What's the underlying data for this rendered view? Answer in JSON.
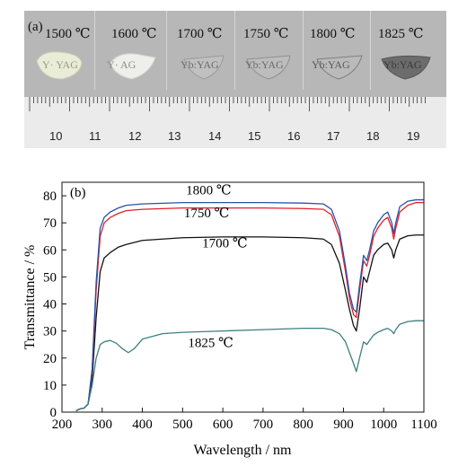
{
  "photo": {
    "label": "(a)",
    "temps": [
      "1500 ℃",
      "1600 ℃",
      "1700 ℃",
      "1750 ℃",
      "1800 ℃",
      "1825 ℃"
    ],
    "sample_text": [
      "Y· YAG",
      "Y· AG",
      "Yb:YAG",
      "Yb:YAG",
      "Yb:YAG",
      "Yb:YAG"
    ],
    "ruler_numbers": [
      "10",
      "11",
      "12",
      "13",
      "14",
      "15",
      "16",
      "17",
      "18",
      "19"
    ]
  },
  "chart_data": {
    "type": "line",
    "panel_label": "(b)",
    "xlabel": "Wavelength / nm",
    "ylabel": "Transmittance / %",
    "xlim": [
      200,
      1100
    ],
    "ylim": [
      0,
      85
    ],
    "xticks": [
      200,
      300,
      400,
      500,
      600,
      700,
      800,
      900,
      1000,
      1100
    ],
    "yticks": [
      0,
      10,
      20,
      30,
      40,
      50,
      60,
      70,
      80
    ],
    "series": [
      {
        "name": "1700 ℃",
        "color": "#111111",
        "x": [
          235,
          245,
          255,
          265,
          275,
          285,
          295,
          305,
          320,
          340,
          360,
          400,
          500,
          600,
          700,
          800,
          850,
          870,
          890,
          905,
          915,
          925,
          932,
          940,
          950,
          958,
          965,
          975,
          985,
          1000,
          1010,
          1020,
          1025,
          1030,
          1040,
          1060,
          1080,
          1100
        ],
        "y": [
          0.5,
          1.2,
          1.5,
          3,
          12,
          35,
          52,
          57,
          59,
          61,
          62,
          63.5,
          64.5,
          64.8,
          64.8,
          64.5,
          64,
          62,
          55,
          45,
          38,
          32,
          30,
          38,
          50,
          48,
          52,
          58,
          60,
          62,
          62.5,
          60,
          57,
          60,
          64,
          65.2,
          65.5,
          65.5
        ]
      },
      {
        "name": "1750 ℃",
        "color": "#e0202a",
        "x": [
          235,
          245,
          255,
          265,
          275,
          285,
          295,
          305,
          320,
          340,
          360,
          400,
          500,
          600,
          700,
          800,
          850,
          870,
          890,
          905,
          915,
          925,
          932,
          940,
          950,
          958,
          965,
          975,
          985,
          1000,
          1010,
          1020,
          1025,
          1030,
          1040,
          1060,
          1080,
          1100
        ],
        "y": [
          0.5,
          1.2,
          1.5,
          3,
          15,
          45,
          65,
          70,
          72,
          73.5,
          74.5,
          75,
          75.5,
          75.5,
          75.5,
          75.3,
          75,
          73,
          65,
          52,
          42,
          36,
          35,
          45,
          56,
          54,
          58,
          65,
          68,
          71,
          72,
          68,
          64,
          68,
          74,
          76.5,
          77.5,
          77.5
        ]
      },
      {
        "name": "1800 ℃",
        "color": "#2a52a8",
        "x": [
          235,
          245,
          255,
          265,
          275,
          285,
          295,
          305,
          320,
          340,
          360,
          400,
          500,
          600,
          700,
          800,
          850,
          870,
          890,
          905,
          915,
          925,
          932,
          940,
          950,
          958,
          965,
          975,
          985,
          1000,
          1010,
          1020,
          1025,
          1030,
          1040,
          1060,
          1080,
          1100
        ],
        "y": [
          0.5,
          1.2,
          1.5,
          3,
          16,
          48,
          68,
          72,
          74,
          75.5,
          76.5,
          77,
          77.5,
          77.5,
          77.5,
          77.3,
          77,
          75,
          67,
          54,
          44,
          38,
          37,
          47,
          58,
          56,
          60,
          67,
          70,
          73,
          74,
          70,
          66,
          70,
          76,
          78,
          78.5,
          78.5
        ]
      },
      {
        "name": "1825 ℃",
        "color": "#3d7f80",
        "x": [
          235,
          245,
          255,
          265,
          275,
          285,
          295,
          305,
          320,
          335,
          350,
          365,
          380,
          400,
          450,
          500,
          600,
          700,
          800,
          850,
          870,
          890,
          905,
          915,
          925,
          932,
          940,
          950,
          958,
          965,
          975,
          985,
          1000,
          1010,
          1020,
          1025,
          1030,
          1040,
          1060,
          1080,
          1100
        ],
        "y": [
          0.5,
          1.2,
          1.5,
          3,
          10,
          20,
          25,
          26,
          26.5,
          25.5,
          23.5,
          22,
          23.5,
          27,
          29,
          29.5,
          30,
          30.5,
          31,
          31,
          30.5,
          29,
          26,
          22,
          18,
          15,
          20,
          26,
          25,
          26.5,
          28.5,
          29.5,
          30.5,
          31,
          30,
          29,
          30.5,
          32.5,
          33.5,
          33.8,
          33.8
        ]
      }
    ],
    "annotations": [
      {
        "text": "1800 ℃",
        "x": 565,
        "y": 80.5
      },
      {
        "text": "1750 ℃",
        "x": 560,
        "y": 72
      },
      {
        "text": "1700 ℃",
        "x": 605,
        "y": 61
      },
      {
        "text": "1825 ℃",
        "x": 570,
        "y": 24
      }
    ]
  }
}
